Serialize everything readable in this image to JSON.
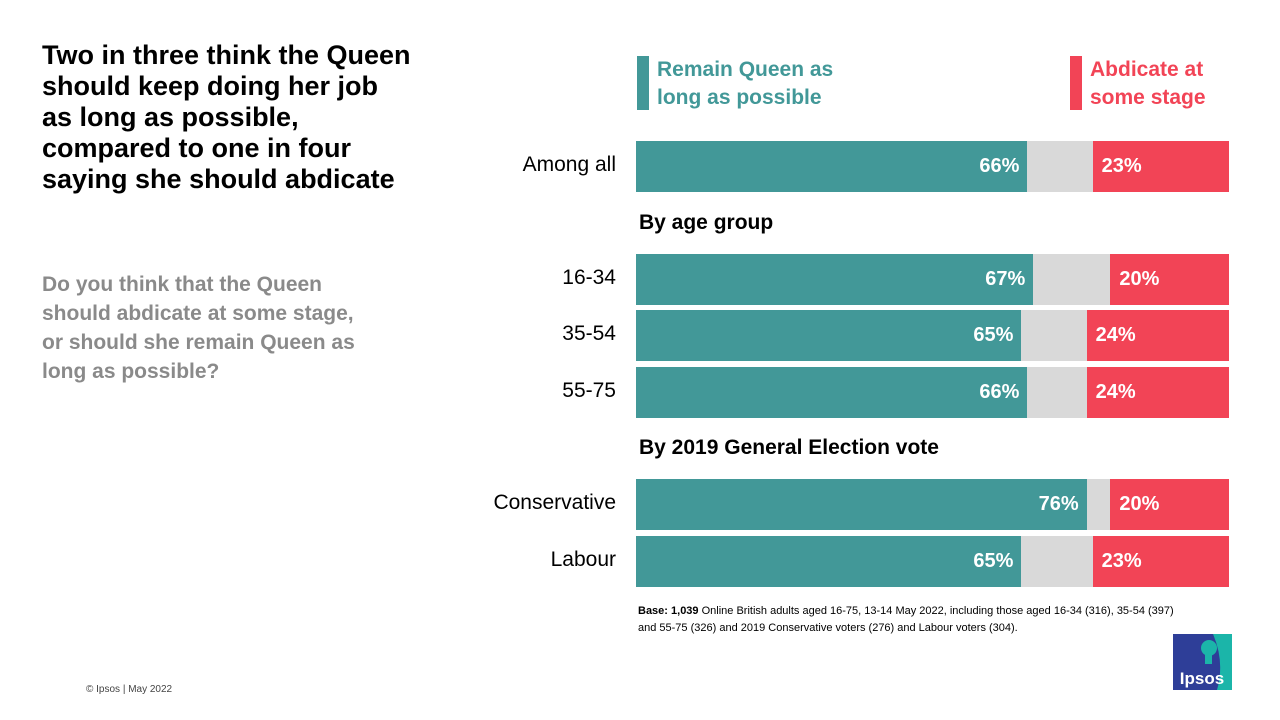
{
  "title": "Two in three think the Queen should keep doing her job as long as possible, compared to one in four saying she should abdicate",
  "subtitle": "Do you think that the Queen should abdicate at some stage, or should she remain Queen as long as possible?",
  "colors": {
    "remain": "#429898",
    "abdicate": "#F24456",
    "neither": "#D9D9D9"
  },
  "chart_data": {
    "type": "bar",
    "orientation": "horizontal-stacked",
    "xlim": [
      0,
      100
    ],
    "legend_placement": "top",
    "series": [
      {
        "name": "Remain Queen as long as possible",
        "values": [
          66,
          67,
          65,
          66,
          76,
          65
        ]
      },
      {
        "name": "Abdicate at some stage",
        "values": [
          23,
          20,
          24,
          24,
          20,
          23
        ]
      }
    ],
    "categories": [
      "Among all",
      "16-34",
      "35-54",
      "55-75",
      "Conservative",
      "Labour"
    ],
    "value_labels_remain": [
      "66%",
      "67%",
      "65%",
      "66%",
      "76%",
      "65%"
    ],
    "value_labels_abdicate": [
      "23%",
      "20%",
      "24%",
      "24%",
      "20%",
      "23%"
    ],
    "group_headers": [
      "By age group",
      "By 2019 General Election vote"
    ]
  },
  "base_bold": "Base: 1,039",
  "base_text": " Online British adults aged 16-75, 13-14 May  2022, including those aged 16-34 (316), 35-54 (397) and 55-75 (326) and 2019 Conservative voters (276) and Labour voters (304).",
  "copyright": "© Ipsos | May 2022",
  "logo_text": "Ipsos"
}
